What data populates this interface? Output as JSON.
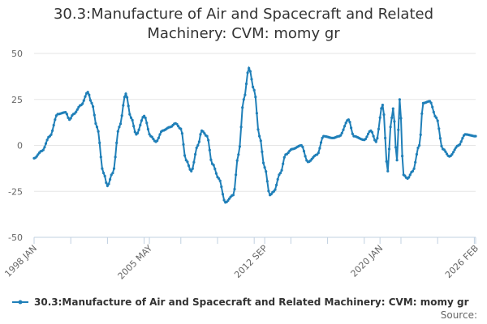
{
  "chart_data": {
    "type": "line",
    "title_lines": [
      "30.3:Manufacture of Air and Spacecraft and Related",
      "Machinery: CVM: momy gr"
    ],
    "ylim": [
      -50,
      50
    ],
    "yticks": [
      -50,
      -25,
      0,
      25,
      50
    ],
    "ytick_labels": [
      "-50",
      "-25",
      "0",
      "25",
      "50"
    ],
    "xlim": [
      "1998-01",
      "2026-02"
    ],
    "xticks": [
      "1998-01",
      "2005-05",
      "2012-09",
      "2020-01",
      "2026-02"
    ],
    "xtick_labels": [
      "1998 JAN",
      "2005 MAY",
      "2012 SEP",
      "2020 JAN",
      "2026 FEB"
    ],
    "grid": true,
    "legend_position": "bottom-left",
    "series": [
      {
        "name": "30.3:Manufacture of Air and Spacecraft and Related Machinery: CVM: momy gr",
        "color": "#1f7fb8",
        "points": [
          [
            "1998-01",
            -7
          ],
          [
            "1998-07",
            -3
          ],
          [
            "1999-01",
            5
          ],
          [
            "1999-07",
            17
          ],
          [
            "2000-01",
            18
          ],
          [
            "2000-04",
            14
          ],
          [
            "2000-07",
            17
          ],
          [
            "2001-01",
            22
          ],
          [
            "2001-06",
            29
          ],
          [
            "2001-09",
            23
          ],
          [
            "2002-01",
            10
          ],
          [
            "2002-06",
            -15
          ],
          [
            "2002-09",
            -22
          ],
          [
            "2003-01",
            -15
          ],
          [
            "2003-06",
            10
          ],
          [
            "2003-11",
            28
          ],
          [
            "2004-03",
            15
          ],
          [
            "2004-07",
            6
          ],
          [
            "2005-01",
            16
          ],
          [
            "2005-06",
            5
          ],
          [
            "2005-10",
            2
          ],
          [
            "2006-03",
            8
          ],
          [
            "2006-09",
            10
          ],
          [
            "2007-01",
            12
          ],
          [
            "2007-05",
            9
          ],
          [
            "2007-09",
            -8
          ],
          [
            "2008-01",
            -14
          ],
          [
            "2008-06",
            0
          ],
          [
            "2008-09",
            8
          ],
          [
            "2009-01",
            5
          ],
          [
            "2009-05",
            -10
          ],
          [
            "2009-10",
            -18
          ],
          [
            "2010-03",
            -31
          ],
          [
            "2010-09",
            -27
          ],
          [
            "2011-01",
            -5
          ],
          [
            "2011-05",
            25
          ],
          [
            "2011-09",
            42
          ],
          [
            "2012-01",
            30
          ],
          [
            "2012-05",
            5
          ],
          [
            "2012-09",
            -12
          ],
          [
            "2013-01",
            -27
          ],
          [
            "2013-04",
            -25
          ],
          [
            "2013-09",
            -15
          ],
          [
            "2014-01",
            -5
          ],
          [
            "2014-06",
            -2
          ],
          [
            "2015-01",
            0
          ],
          [
            "2015-06",
            -9
          ],
          [
            "2016-01",
            -5
          ],
          [
            "2016-06",
            5
          ],
          [
            "2017-01",
            4
          ],
          [
            "2017-06",
            5
          ],
          [
            "2018-01",
            14
          ],
          [
            "2018-05",
            5
          ],
          [
            "2019-01",
            3
          ],
          [
            "2019-06",
            8
          ],
          [
            "2019-10",
            2
          ],
          [
            "2020-03",
            22
          ],
          [
            "2020-07",
            -14
          ],
          [
            "2020-09",
            10
          ],
          [
            "2020-11",
            20
          ],
          [
            "2021-02",
            -8
          ],
          [
            "2021-04",
            25
          ],
          [
            "2021-07",
            -16
          ],
          [
            "2021-10",
            -18
          ],
          [
            "2022-02",
            -14
          ],
          [
            "2022-07",
            0
          ],
          [
            "2022-10",
            23
          ],
          [
            "2023-03",
            24
          ],
          [
            "2023-08",
            15
          ],
          [
            "2024-01",
            -2
          ],
          [
            "2024-06",
            -6
          ],
          [
            "2025-01",
            0
          ],
          [
            "2025-06",
            6
          ],
          [
            "2026-02",
            5
          ]
        ]
      }
    ]
  },
  "source_label": "Source:"
}
